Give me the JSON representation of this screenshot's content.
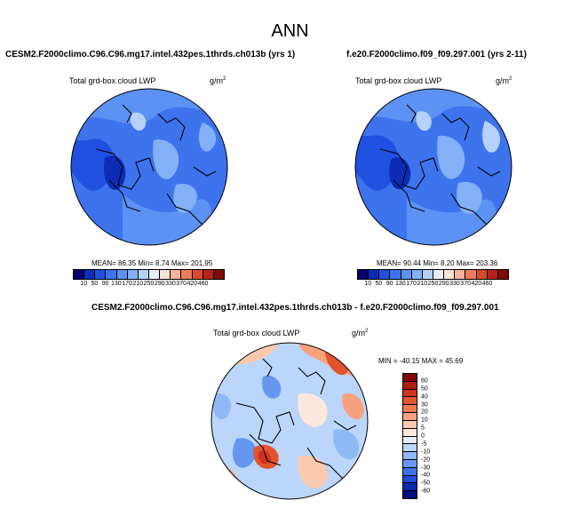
{
  "title": "ANN",
  "panels": {
    "left": {
      "case": "CESM2.F2000climo.C96.C96.mg17.intel.432pes.1thrds.ch013b (yrs 1)",
      "variable": "Total grd-box cloud LWP",
      "units": "g/m",
      "units_exp": "2",
      "stats": "MEAN= 86.35  Min= 8.74  Max= 201.95"
    },
    "right": {
      "case": "f.e20.F2000climo.f09_f09.297.001 (yrs 2-11)",
      "variable": "Total grd-box cloud LWP",
      "units": "g/m",
      "units_exp": "2",
      "stats": "MEAN= 90.44  Min= 8.20  Max= 203.36"
    },
    "diff": {
      "case": "CESM2.F2000climo.C96.C96.mg17.intel.432pes.1thrds.ch013b - f.e20.F2000climo.f09_f09.297.001",
      "variable": "Total grd-box cloud LWP",
      "units": "g/m",
      "units_exp": "2",
      "stats": "MIN = -40.15 MAX = 45.69"
    }
  },
  "colorbar_abs": {
    "ticks": [
      "10",
      "50",
      "90",
      "130",
      "170",
      "210",
      "250",
      "290",
      "330",
      "370",
      "420",
      "460"
    ],
    "colors": [
      "#08006e",
      "#0a2cb6",
      "#1f50e0",
      "#3e73ee",
      "#5c92f3",
      "#83b1f7",
      "#b6d2fb",
      "#e4eefd",
      "#fde3d6",
      "#f9b39a",
      "#ee7b5a",
      "#d84a2a",
      "#b8211a",
      "#7e0b08"
    ]
  },
  "colorbar_diff": {
    "ticks": [
      "60",
      "50",
      "40",
      "30",
      "20",
      "10",
      "5",
      "0",
      "-5",
      "-10",
      "-20",
      "-30",
      "-40",
      "-50",
      "-60"
    ],
    "colors": [
      "#7e0b08",
      "#b01d12",
      "#d0331d",
      "#e4532f",
      "#ef7a4e",
      "#f6a17b",
      "#fbc9ae",
      "#fde8dd",
      "#e3eefd",
      "#bcd6fb",
      "#8fb8f6",
      "#6597f1",
      "#3c72ea",
      "#1f4ed8",
      "#0a2ab0",
      "#060f80"
    ]
  }
}
